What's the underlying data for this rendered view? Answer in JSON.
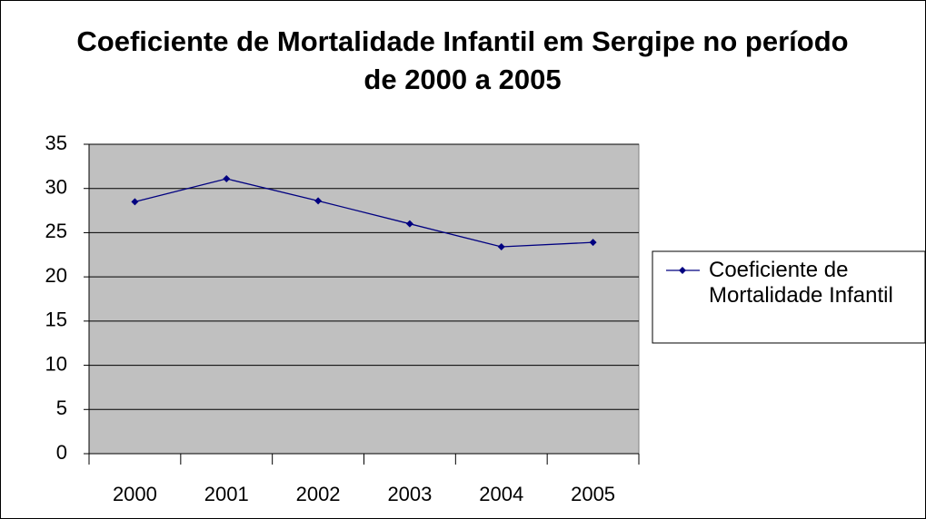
{
  "chart_data": {
    "type": "line",
    "title": "Coeficiente de Mortalidade Infantil em Sergipe no período de 2000 a 2005",
    "categories": [
      "2000",
      "2001",
      "2002",
      "2003",
      "2004",
      "2005"
    ],
    "series": [
      {
        "name": "Coeficiente de Mortalidade Infantil",
        "color": "#000080",
        "values": [
          28.5,
          31.1,
          28.6,
          26.0,
          23.4,
          23.9
        ]
      }
    ],
    "ylim": [
      0,
      35
    ],
    "yticks": [
      0,
      5,
      10,
      15,
      20,
      25,
      30,
      35
    ],
    "grid": true,
    "plot_background": "#c0c0c0",
    "legend": "right"
  }
}
